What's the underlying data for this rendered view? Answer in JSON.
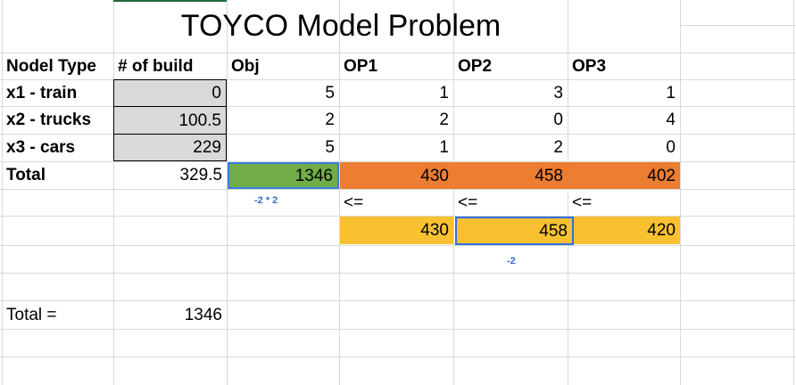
{
  "title": "TOYCO Model Problem",
  "headers": [
    "Nodel Type",
    "# of build",
    "Obj",
    "OP1",
    "OP2",
    "OP3"
  ],
  "rows": [
    {
      "type": "x1 - train",
      "build": "0",
      "obj": "5",
      "op1": "1",
      "op2": "3",
      "op3": "1"
    },
    {
      "type": "x2 - trucks",
      "build": "100.5",
      "obj": "2",
      "op1": "2",
      "op2": "0",
      "op3": "4"
    },
    {
      "type": "x3 - cars",
      "build": "229",
      "obj": "5",
      "op1": "1",
      "op2": "2",
      "op3": "0"
    }
  ],
  "total_row": {
    "label": "Total",
    "build": "329.5",
    "obj": "1346",
    "op1": "430",
    "op2": "458",
    "op3": "402"
  },
  "constraint_ops": [
    "<=",
    "<=",
    "<="
  ],
  "limits": {
    "op1": "430",
    "op2": "458",
    "op3": "420"
  },
  "notes": {
    "obj": "-2 * 2",
    "op2": "-2"
  },
  "summary": {
    "label": "Total =",
    "value": "1346"
  },
  "colors": {
    "gray": "#d9d9d9",
    "green": "#70ad47",
    "orange": "#ed7d31",
    "yellow": "#f9c132",
    "selection": "#2f6fd9"
  }
}
